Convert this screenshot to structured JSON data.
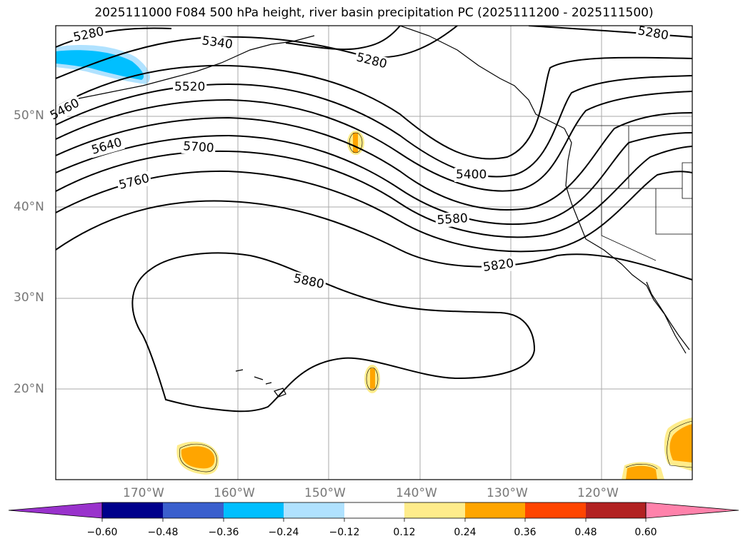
{
  "title": "2025111000 F084 500 hPa height, river basin precipitation PC (2025111200 - 2025111500)",
  "latitude_labels": [
    "50°N",
    "40°N",
    "30°N",
    "20°N"
  ],
  "longitude_labels": [
    "170°W",
    "160°W",
    "150°W",
    "140°W",
    "130°W",
    "120°W"
  ],
  "contour_labels": [
    "5280",
    "5340",
    "5280",
    "5280",
    "5520",
    "5460",
    "5640",
    "5700",
    "5760",
    "5400",
    "5580",
    "5820",
    "5880"
  ],
  "colorbar": {
    "ticks": [
      "−0.60",
      "−0.48",
      "−0.36",
      "−0.24",
      "−0.12",
      "0.12",
      "0.24",
      "0.36",
      "0.48",
      "0.60"
    ],
    "colors": [
      "#9932cc",
      "#00008b",
      "#3a5fcd",
      "#00bfff",
      "#b0e2ff",
      "#ffffff",
      "#ffec8b",
      "#ffa500",
      "#ff4500",
      "#b22222",
      "#ff82ab"
    ]
  },
  "colors": {
    "positive_anomaly": "#ffa500",
    "weak_positive": "#ffec8b",
    "negative_anomaly": "#00bfff",
    "weak_negative": "#b0e2ff",
    "grid": "#aaaaaa",
    "contour": "#000000"
  }
}
